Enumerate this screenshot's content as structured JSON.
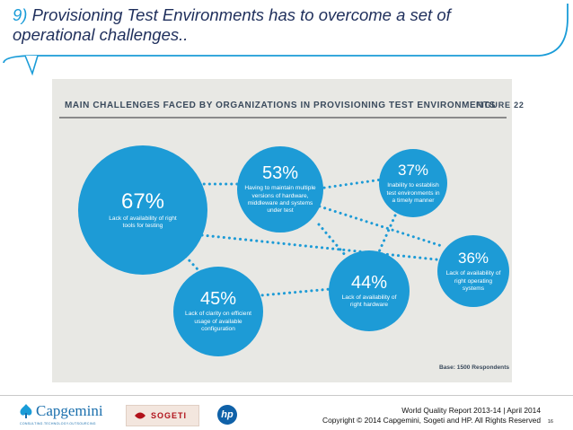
{
  "slide": {
    "title_number": "9)",
    "title_text": " Provisioning Test Environments has to overcome a set of operational challenges..",
    "page_number": "16"
  },
  "figure": {
    "heading": "MAIN CHALLENGES FACED BY ORGANIZATIONS IN PROVISIONING TEST ENVIRONMENTS",
    "label": "FIGURE 22",
    "base": "Base: 1500 Respondents",
    "challenges": [
      {
        "pct": "67%",
        "desc": "Lack of availability of right tools for testing"
      },
      {
        "pct": "53%",
        "desc": "Having to maintain multiple versions of hardware, middleware and systems under test"
      },
      {
        "pct": "37%",
        "desc": "Inability to establish test environments in a timely manner"
      },
      {
        "pct": "45%",
        "desc": "Lack of clarity on efficient usage of available configuration"
      },
      {
        "pct": "44%",
        "desc": "Lack of availability of right hardware"
      },
      {
        "pct": "36%",
        "desc": "Lack of availability of right operating systems"
      }
    ],
    "colors": {
      "circle": "#1d9bd6",
      "connector": "#1d9bd6",
      "panel": "#e8e8e4"
    }
  },
  "footer": {
    "report_line1": "World Quality Report 2013-14 | April 2014",
    "report_line2": "Copyright © 2014 Capgemini, Sogeti and HP. All Rights Reserved",
    "logo_capgemini": "Capgemini",
    "logo_capgemini_sub": "CONSULTING.TECHNOLOGY.OUTSOURCING",
    "logo_sogeti": "SOGETI",
    "logo_hp": "hp"
  }
}
